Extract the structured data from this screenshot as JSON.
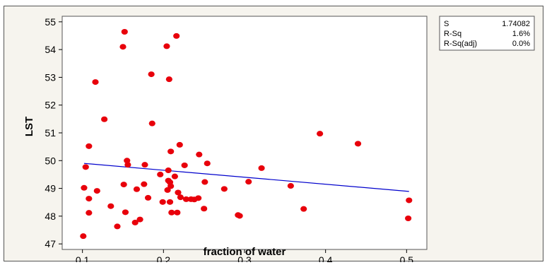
{
  "chart_data": {
    "type": "scatter",
    "title": "",
    "xlabel": "fraction of water",
    "ylabel": "LST",
    "xlim": [
      0.075,
      0.525
    ],
    "ylim": [
      46.8,
      55.2
    ],
    "xticks": [
      "0.1",
      "0.2",
      "0.3",
      "0.4",
      "0.5"
    ],
    "yticks": [
      "47",
      "48",
      "49",
      "50",
      "51",
      "52",
      "53",
      "54",
      "55"
    ],
    "grid": false,
    "point_color": "#e8000b",
    "line_color": "#0000cc",
    "points": [
      [
        0.101,
        47.28
      ],
      [
        0.102,
        49.02
      ],
      [
        0.104,
        49.77
      ],
      [
        0.108,
        50.52
      ],
      [
        0.108,
        48.12
      ],
      [
        0.108,
        48.63
      ],
      [
        0.116,
        52.83
      ],
      [
        0.118,
        48.91
      ],
      [
        0.127,
        51.49
      ],
      [
        0.135,
        48.36
      ],
      [
        0.143,
        47.63
      ],
      [
        0.15,
        54.1
      ],
      [
        0.151,
        49.14
      ],
      [
        0.152,
        54.64
      ],
      [
        0.153,
        48.14
      ],
      [
        0.155,
        50.0
      ],
      [
        0.156,
        49.85
      ],
      [
        0.165,
        47.77
      ],
      [
        0.167,
        48.97
      ],
      [
        0.171,
        47.88
      ],
      [
        0.176,
        49.15
      ],
      [
        0.177,
        49.85
      ],
      [
        0.181,
        48.66
      ],
      [
        0.185,
        53.11
      ],
      [
        0.186,
        51.34
      ],
      [
        0.196,
        49.5
      ],
      [
        0.199,
        48.51
      ],
      [
        0.204,
        54.12
      ],
      [
        0.205,
        48.94
      ],
      [
        0.206,
        49.65
      ],
      [
        0.206,
        49.28
      ],
      [
        0.207,
        52.93
      ],
      [
        0.208,
        49.22
      ],
      [
        0.209,
        49.08
      ],
      [
        0.208,
        48.51
      ],
      [
        0.209,
        50.33
      ],
      [
        0.21,
        48.13
      ],
      [
        0.214,
        49.43
      ],
      [
        0.216,
        54.49
      ],
      [
        0.217,
        48.13
      ],
      [
        0.218,
        48.85
      ],
      [
        0.22,
        50.57
      ],
      [
        0.221,
        48.68
      ],
      [
        0.226,
        49.83
      ],
      [
        0.228,
        48.61
      ],
      [
        0.234,
        48.61
      ],
      [
        0.238,
        48.6
      ],
      [
        0.243,
        48.65
      ],
      [
        0.244,
        50.22
      ],
      [
        0.25,
        48.27
      ],
      [
        0.251,
        49.23
      ],
      [
        0.254,
        49.9
      ],
      [
        0.275,
        48.98
      ],
      [
        0.292,
        48.04
      ],
      [
        0.294,
        48.01
      ],
      [
        0.305,
        49.24
      ],
      [
        0.321,
        49.73
      ],
      [
        0.357,
        49.09
      ],
      [
        0.373,
        48.26
      ],
      [
        0.393,
        50.97
      ],
      [
        0.44,
        50.61
      ],
      [
        0.502,
        47.92
      ],
      [
        0.503,
        48.57
      ]
    ],
    "fit_line": {
      "x": [
        0.102,
        0.503
      ],
      "y": [
        49.9,
        48.89
      ]
    },
    "stats": [
      {
        "label": "S",
        "value": "1.74082"
      },
      {
        "label": "R-Sq",
        "value": "1.6%"
      },
      {
        "label": "R-Sq(adj)",
        "value": "0.0%"
      }
    ]
  }
}
